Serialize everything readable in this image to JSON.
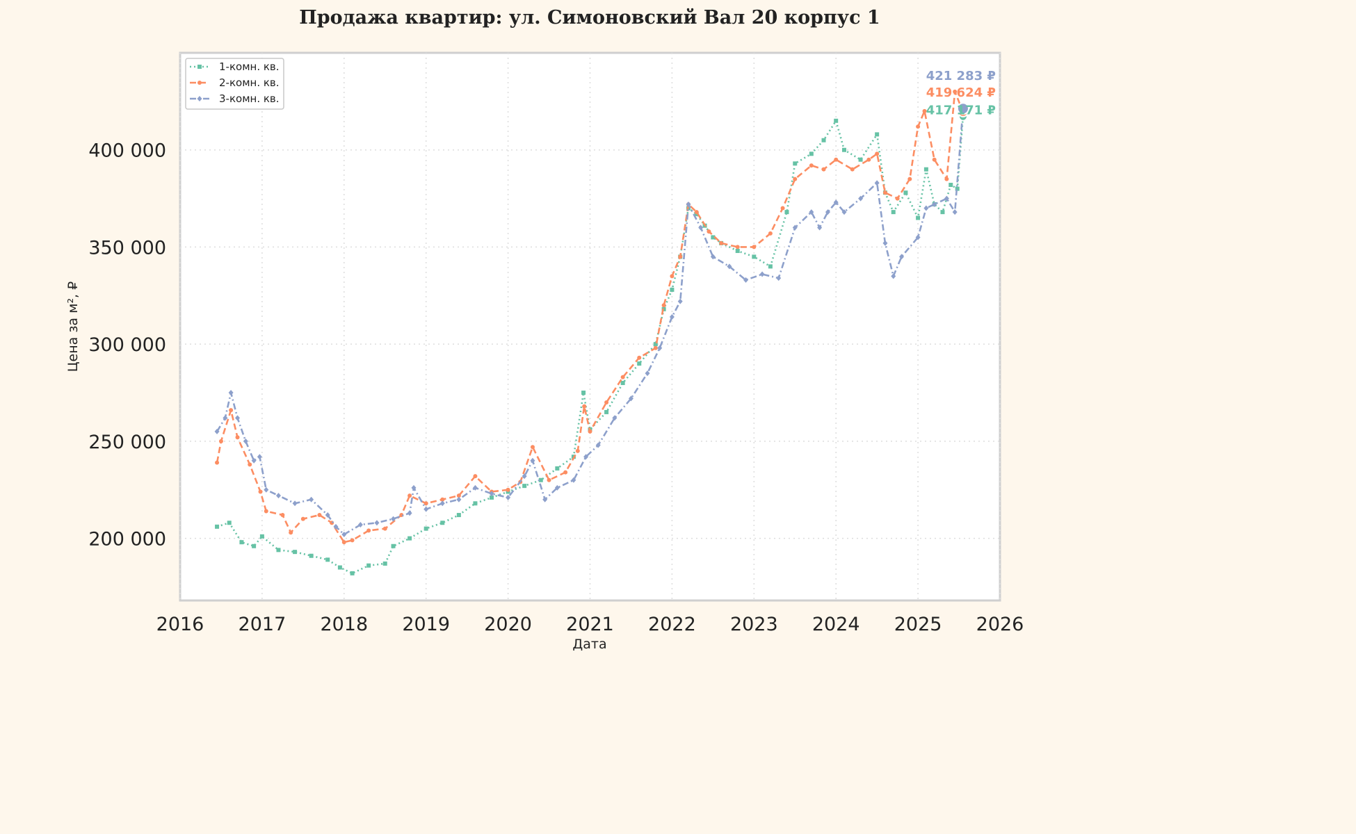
{
  "chart_data": {
    "type": "line",
    "title": "Продажа квартир: ул. Симоновский Вал 20 корпус 1",
    "xlabel": "Дата",
    "ylabel": "Цена за м², ₽",
    "xlim": [
      2016.0,
      2026.0
    ],
    "ylim": [
      168000,
      450000
    ],
    "x_ticks": [
      2016,
      2017,
      2018,
      2019,
      2020,
      2021,
      2022,
      2023,
      2024,
      2025,
      2026
    ],
    "x_tick_labels": [
      "2016",
      "2017",
      "2018",
      "2019",
      "2020",
      "2021",
      "2022",
      "2023",
      "2024",
      "2025",
      "2026"
    ],
    "y_ticks": [
      200000,
      250000,
      300000,
      350000,
      400000
    ],
    "y_tick_labels": [
      "200 000",
      "250 000",
      "300 000",
      "350 000",
      "400 000"
    ],
    "grid": true,
    "legend_position": "top-left",
    "series": [
      {
        "name": "1-комн. кв.",
        "color": "#66c2a5",
        "dash": "dotted",
        "marker": "square",
        "x": [
          2016.45,
          2016.6,
          2016.75,
          2016.9,
          2017.0,
          2017.2,
          2017.4,
          2017.6,
          2017.8,
          2017.95,
          2018.1,
          2018.3,
          2018.5,
          2018.6,
          2018.8,
          2019.0,
          2019.2,
          2019.4,
          2019.6,
          2019.8,
          2020.0,
          2020.2,
          2020.4,
          2020.6,
          2020.8,
          2020.92,
          2021.0,
          2021.2,
          2021.4,
          2021.6,
          2021.8,
          2021.9,
          2022.0,
          2022.1,
          2022.2,
          2022.3,
          2022.4,
          2022.5,
          2022.6,
          2022.8,
          2023.0,
          2023.2,
          2023.4,
          2023.5,
          2023.7,
          2023.85,
          2024.0,
          2024.1,
          2024.3,
          2024.5,
          2024.6,
          2024.7,
          2024.85,
          2025.0,
          2025.1,
          2025.2,
          2025.3,
          2025.4,
          2025.48,
          2025.55
        ],
        "values": [
          206000,
          208000,
          198000,
          196000,
          201000,
          194000,
          193000,
          191000,
          189000,
          185000,
          182000,
          186000,
          187000,
          196000,
          200000,
          205000,
          208000,
          212000,
          218000,
          221000,
          224000,
          227000,
          230000,
          236000,
          242000,
          275000,
          256000,
          265000,
          280000,
          290000,
          300000,
          318000,
          328000,
          345000,
          370000,
          367000,
          361000,
          355000,
          352000,
          348000,
          345000,
          340000,
          368000,
          393000,
          398000,
          405000,
          415000,
          400000,
          395000,
          408000,
          378000,
          368000,
          378000,
          365000,
          390000,
          372000,
          368000,
          382000,
          380000,
          417171
        ]
      },
      {
        "name": "2-комн. кв.",
        "color": "#fc8d62",
        "dash": "dashed",
        "marker": "circle",
        "x": [
          2016.45,
          2016.5,
          2016.62,
          2016.7,
          2016.85,
          2016.98,
          2017.05,
          2017.25,
          2017.35,
          2017.5,
          2017.7,
          2017.85,
          2018.0,
          2018.1,
          2018.3,
          2018.5,
          2018.7,
          2018.8,
          2019.0,
          2019.2,
          2019.4,
          2019.6,
          2019.8,
          2020.0,
          2020.15,
          2020.3,
          2020.5,
          2020.7,
          2020.85,
          2020.93,
          2021.0,
          2021.2,
          2021.4,
          2021.6,
          2021.8,
          2021.9,
          2022.0,
          2022.1,
          2022.2,
          2022.3,
          2022.45,
          2022.6,
          2022.8,
          2023.0,
          2023.2,
          2023.35,
          2023.5,
          2023.7,
          2023.85,
          2024.0,
          2024.2,
          2024.4,
          2024.5,
          2024.6,
          2024.75,
          2024.9,
          2025.0,
          2025.08,
          2025.2,
          2025.35,
          2025.45,
          2025.55
        ],
        "values": [
          239000,
          250000,
          266000,
          252000,
          238000,
          224000,
          214000,
          212000,
          203000,
          210000,
          212000,
          208000,
          198000,
          199000,
          204000,
          205000,
          212000,
          222000,
          218000,
          220000,
          222000,
          232000,
          224000,
          225000,
          229000,
          247000,
          230000,
          234000,
          245000,
          268000,
          255000,
          270000,
          283000,
          293000,
          298000,
          320000,
          335000,
          345000,
          372000,
          368000,
          358000,
          352000,
          350000,
          350000,
          357000,
          370000,
          385000,
          392000,
          390000,
          395000,
          390000,
          395000,
          398000,
          378000,
          375000,
          385000,
          412000,
          420000,
          395000,
          385000,
          430000,
          419624
        ]
      },
      {
        "name": "3-комн. кв.",
        "color": "#8da0cb",
        "dash": "dashdot",
        "marker": "diamond",
        "x": [
          2016.45,
          2016.55,
          2016.62,
          2016.7,
          2016.8,
          2016.9,
          2016.97,
          2017.05,
          2017.2,
          2017.4,
          2017.6,
          2017.8,
          2017.9,
          2018.0,
          2018.2,
          2018.4,
          2018.6,
          2018.8,
          2018.85,
          2019.0,
          2019.2,
          2019.4,
          2019.6,
          2019.8,
          2020.0,
          2020.2,
          2020.3,
          2020.45,
          2020.6,
          2020.8,
          2020.95,
          2021.1,
          2021.3,
          2021.5,
          2021.7,
          2021.85,
          2022.0,
          2022.1,
          2022.2,
          2022.35,
          2022.5,
          2022.7,
          2022.9,
          2023.1,
          2023.3,
          2023.5,
          2023.7,
          2023.8,
          2023.9,
          2024.0,
          2024.1,
          2024.3,
          2024.5,
          2024.6,
          2024.7,
          2024.8,
          2025.0,
          2025.1,
          2025.2,
          2025.35,
          2025.45,
          2025.55
        ],
        "values": [
          255000,
          262000,
          275000,
          262000,
          250000,
          240000,
          242000,
          225000,
          222000,
          218000,
          220000,
          212000,
          206000,
          202000,
          207000,
          208000,
          210000,
          213000,
          226000,
          215000,
          218000,
          220000,
          226000,
          223000,
          221000,
          232000,
          240000,
          220000,
          226000,
          230000,
          242000,
          248000,
          262000,
          272000,
          285000,
          298000,
          314000,
          322000,
          372000,
          360000,
          345000,
          340000,
          333000,
          336000,
          334000,
          360000,
          368000,
          360000,
          368000,
          373000,
          368000,
          375000,
          383000,
          352000,
          335000,
          345000,
          355000,
          370000,
          372000,
          375000,
          368000,
          421283
        ]
      }
    ],
    "end_labels": [
      "421 283 ₽",
      "419 624 ₽",
      "417 171 ₽"
    ]
  }
}
